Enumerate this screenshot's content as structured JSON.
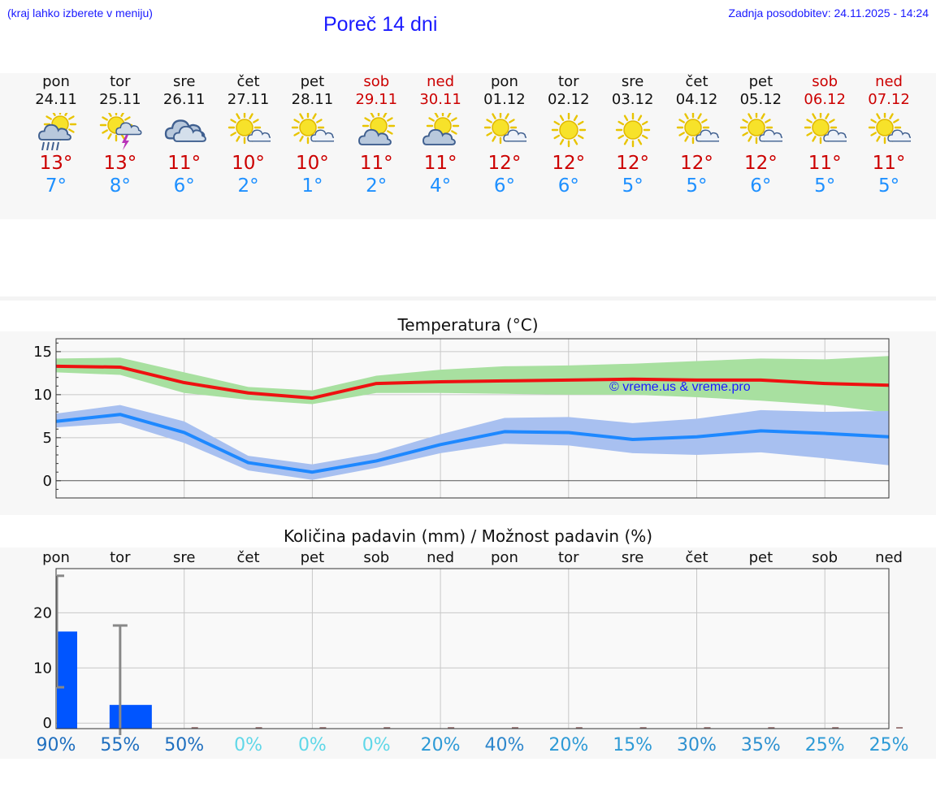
{
  "header": {
    "hint": "(kraj lahko izberete v meniju)",
    "title": "Poreč 14 dni",
    "updated": "Zadnja posodobitev: 24.11.2025 - 14:24"
  },
  "colors": {
    "max": "#cc0000",
    "min": "#1e90ff",
    "link": "#1a1aff"
  },
  "days": [
    {
      "name": "pon",
      "date": "24.11",
      "icon": "sun-cloud-rain-icon",
      "max": "13°",
      "min": "7°",
      "weekend": false
    },
    {
      "name": "tor",
      "date": "25.11",
      "icon": "sun-cloud-thunder-icon",
      "max": "13°",
      "min": "8°",
      "weekend": false
    },
    {
      "name": "sre",
      "date": "26.11",
      "icon": "cloudy-icon",
      "max": "11°",
      "min": "6°",
      "weekend": false
    },
    {
      "name": "čet",
      "date": "27.11",
      "icon": "sun-small-cloud-icon",
      "max": "10°",
      "min": "2°",
      "weekend": false
    },
    {
      "name": "pet",
      "date": "28.11",
      "icon": "sun-small-cloud-icon",
      "max": "10°",
      "min": "1°",
      "weekend": false
    },
    {
      "name": "sob",
      "date": "29.11",
      "icon": "sun-cloud-icon",
      "max": "11°",
      "min": "2°",
      "weekend": true
    },
    {
      "name": "ned",
      "date": "30.11",
      "icon": "sun-cloud-icon",
      "max": "11°",
      "min": "4°",
      "weekend": true
    },
    {
      "name": "pon",
      "date": "01.12",
      "icon": "sun-small-cloud-icon",
      "max": "12°",
      "min": "6°",
      "weekend": false
    },
    {
      "name": "tor",
      "date": "02.12",
      "icon": "sun-icon",
      "max": "12°",
      "min": "6°",
      "weekend": false
    },
    {
      "name": "sre",
      "date": "03.12",
      "icon": "sun-icon",
      "max": "12°",
      "min": "5°",
      "weekend": false
    },
    {
      "name": "čet",
      "date": "04.12",
      "icon": "sun-small-cloud-icon",
      "max": "12°",
      "min": "5°",
      "weekend": false
    },
    {
      "name": "pet",
      "date": "05.12",
      "icon": "sun-small-cloud-icon",
      "max": "12°",
      "min": "6°",
      "weekend": false
    },
    {
      "name": "sob",
      "date": "06.12",
      "icon": "sun-small-cloud-icon",
      "max": "11°",
      "min": "5°",
      "weekend": true
    },
    {
      "name": "ned",
      "date": "07.12",
      "icon": "sun-small-cloud-icon",
      "max": "11°",
      "min": "5°",
      "weekend": true
    }
  ],
  "watermark": "© vreme.us & vreme.pro",
  "chart_data": [
    {
      "type": "line",
      "title": "Temperatura (°C)",
      "ylim": [
        -2,
        16.5
      ],
      "yticks": [
        0,
        5,
        10,
        15
      ],
      "categories": [
        "pon",
        "tor",
        "sre",
        "čet",
        "pet",
        "sob",
        "ned",
        "pon",
        "tor",
        "sre",
        "čet",
        "pet",
        "sob",
        "ned"
      ],
      "series": [
        {
          "name": "max",
          "values": [
            13.3,
            13.2,
            11.4,
            10.2,
            9.6,
            11.3,
            11.5,
            11.6,
            11.7,
            11.8,
            11.7,
            11.7,
            11.3,
            11.1
          ],
          "band_low": [
            12.6,
            12.3,
            10.2,
            9.4,
            8.9,
            10.2,
            10.2,
            10.1,
            10.0,
            10.0,
            9.7,
            9.3,
            8.8,
            7.9
          ],
          "band_high": [
            14.2,
            14.3,
            12.6,
            10.9,
            10.5,
            12.2,
            12.9,
            13.3,
            13.4,
            13.6,
            13.9,
            14.2,
            14.1,
            14.5
          ]
        },
        {
          "name": "min",
          "values": [
            6.9,
            7.7,
            5.6,
            2.1,
            1.0,
            2.3,
            4.2,
            5.7,
            5.6,
            4.8,
            5.1,
            5.8,
            5.5,
            5.1
          ],
          "band_low": [
            6.2,
            6.7,
            4.4,
            1.2,
            0.1,
            1.5,
            3.2,
            4.3,
            4.1,
            3.2,
            3.0,
            3.3,
            2.6,
            1.8
          ],
          "band_high": [
            7.8,
            8.8,
            6.9,
            2.9,
            1.9,
            3.2,
            5.4,
            7.3,
            7.4,
            6.7,
            7.2,
            8.2,
            8.0,
            8.1
          ]
        }
      ]
    },
    {
      "type": "bar",
      "title": "Količina padavin (mm) / Možnost padavin (%)",
      "ylim": [
        -1,
        28
      ],
      "yticks": [
        0,
        10,
        20
      ],
      "categories": [
        "pon",
        "tor",
        "sre",
        "čet",
        "pet",
        "sob",
        "ned",
        "pon",
        "tor",
        "sre",
        "čet",
        "pet",
        "sob",
        "ned"
      ],
      "values": [
        16.6,
        3.3,
        0,
        0,
        0,
        0,
        0,
        0,
        0,
        0,
        0,
        0,
        0,
        0
      ],
      "error_low": [
        6.5,
        0,
        0,
        0,
        0,
        0,
        0,
        0,
        0,
        0,
        0,
        0,
        0,
        0
      ],
      "error_high": [
        26.7,
        17.7,
        0,
        0,
        0,
        0,
        0,
        0,
        0,
        0,
        0,
        0,
        0,
        0
      ],
      "probability": [
        {
          "label": "90%",
          "color": "#1f6fbf"
        },
        {
          "label": "55%",
          "color": "#1f6fbf"
        },
        {
          "label": "50%",
          "color": "#1f6fbf"
        },
        {
          "label": "0%",
          "color": "#5fd7e8"
        },
        {
          "label": "0%",
          "color": "#5fd7e8"
        },
        {
          "label": "0%",
          "color": "#5fd7e8"
        },
        {
          "label": "20%",
          "color": "#2d9ad6"
        },
        {
          "label": "40%",
          "color": "#2d86cc"
        },
        {
          "label": "20%",
          "color": "#2d9ad6"
        },
        {
          "label": "15%",
          "color": "#2d9ad6"
        },
        {
          "label": "30%",
          "color": "#2d90d0"
        },
        {
          "label": "35%",
          "color": "#2d90d0"
        },
        {
          "label": "25%",
          "color": "#2d9ad6"
        },
        {
          "label": "25%",
          "color": "#2d9ad6"
        }
      ]
    }
  ]
}
